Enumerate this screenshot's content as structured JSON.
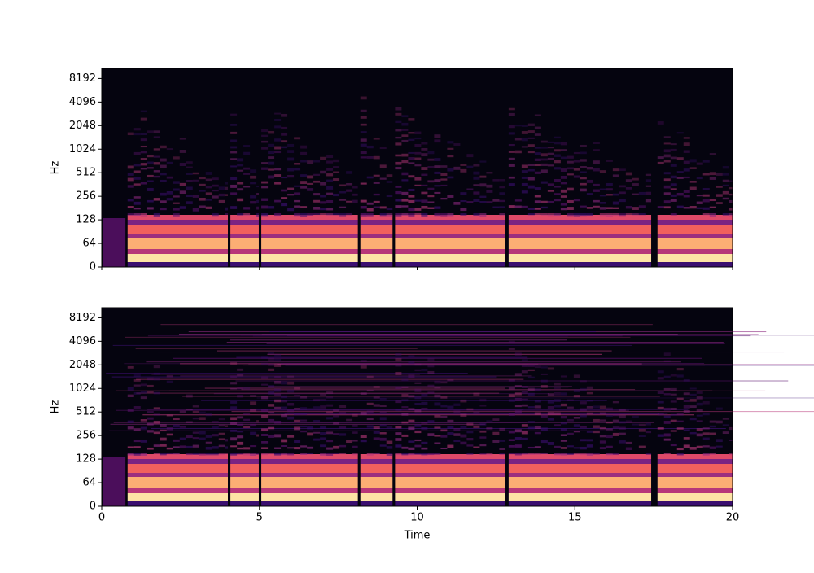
{
  "chart_data": [
    {
      "type": "spectrogram",
      "ylabel": "Hz",
      "xlim": [
        0,
        20
      ],
      "xticks": [
        0,
        5,
        10,
        15,
        20
      ],
      "show_xtick_labels": false,
      "ylim": [
        0,
        11025
      ],
      "yticks": [
        0,
        64,
        128,
        256,
        512,
        1024,
        2048,
        4096,
        8192
      ],
      "yscale": "symlog",
      "linthresh": 64,
      "colormap": "magma"
    },
    {
      "type": "spectrogram",
      "ylabel": "Hz",
      "xlabel": "Time",
      "xlim": [
        0,
        20
      ],
      "xticks": [
        0,
        5,
        10,
        15,
        20
      ],
      "show_xtick_labels": true,
      "ylim": [
        0,
        11025
      ],
      "yticks": [
        0,
        64,
        128,
        256,
        512,
        1024,
        2048,
        4096,
        8192
      ],
      "yscale": "symlog",
      "linthresh": 64,
      "colormap": "magma"
    }
  ]
}
